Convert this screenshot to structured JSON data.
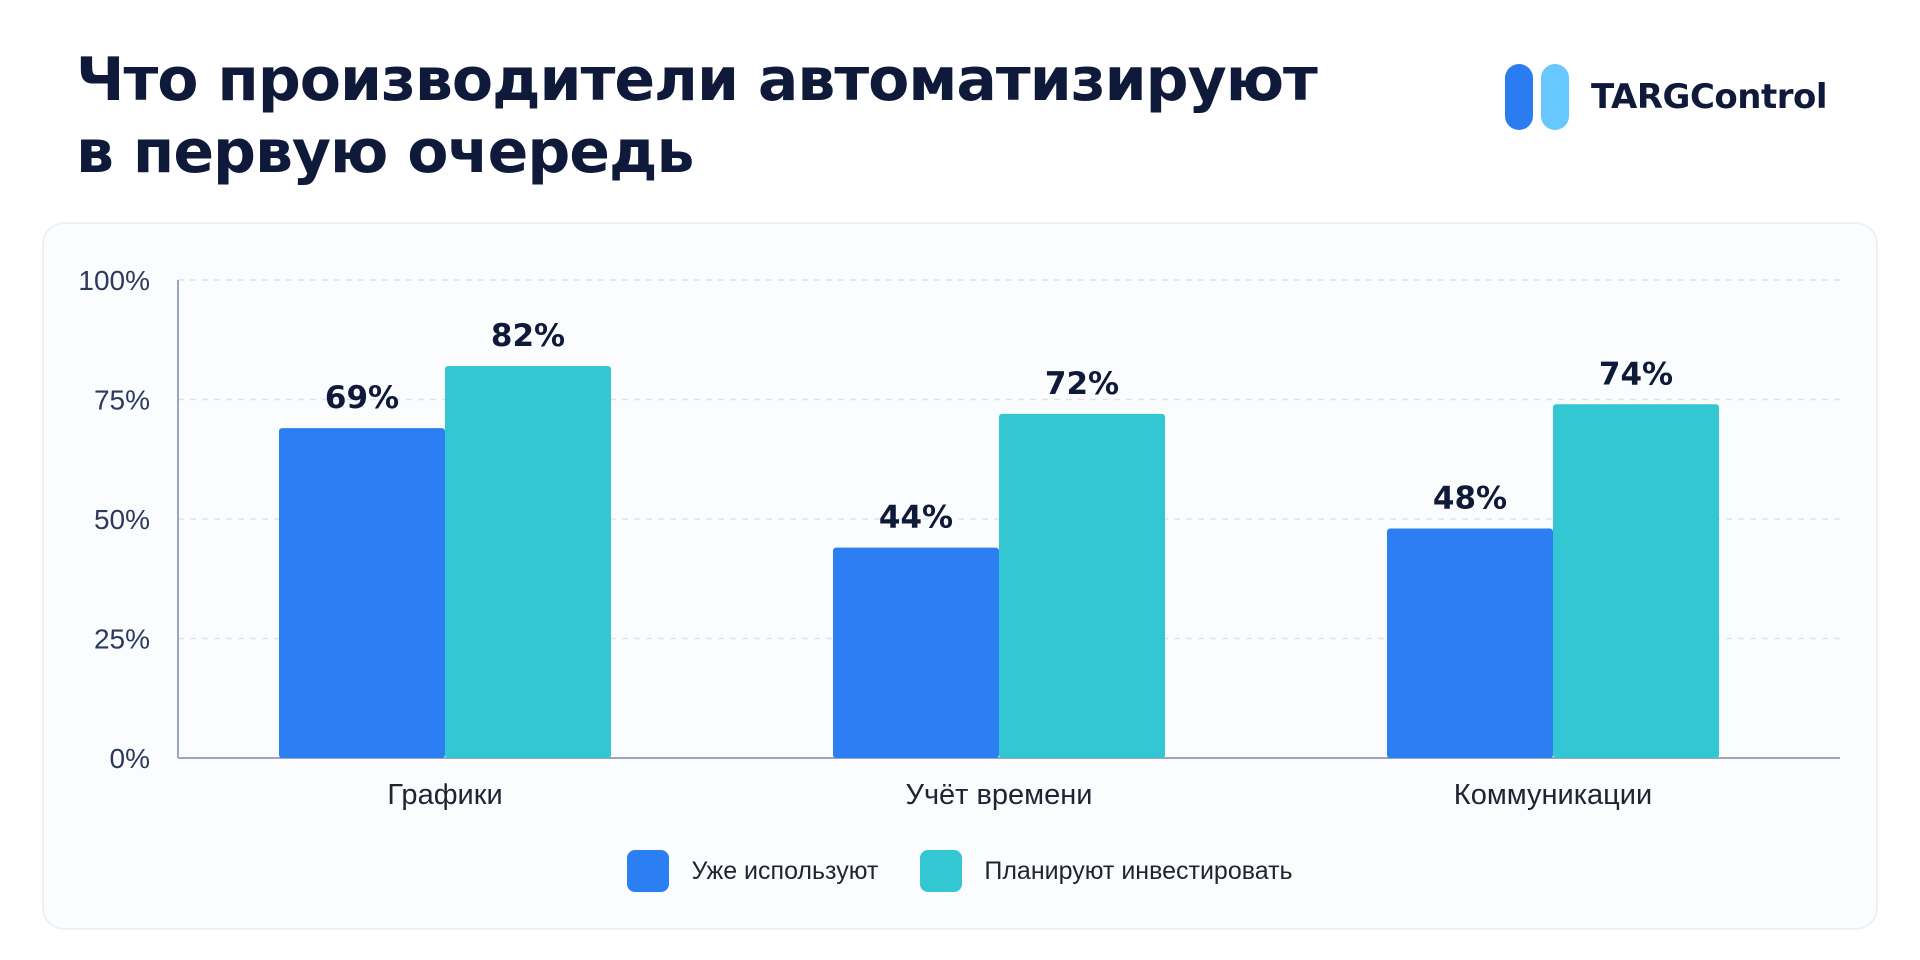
{
  "title_lines": [
    "Что производители автоматизируют",
    "в первую очередь"
  ],
  "brand": {
    "name": "TARGControl",
    "icon": "two-pill-logo-icon",
    "colors": [
      "#2b7cf0",
      "#67c7ff"
    ]
  },
  "chart_data": {
    "type": "bar",
    "categories": [
      "Графики",
      "Учёт времени",
      "Коммуникации"
    ],
    "series": [
      {
        "name": "Уже используют",
        "values": [
          69,
          44,
          48
        ],
        "labels": [
          "69%",
          "44%",
          "48%"
        ],
        "color": "#2b7ff2"
      },
      {
        "name": "Планируют инвестировать",
        "values": [
          82,
          72,
          74
        ],
        "labels": [
          "82%",
          "72%",
          "74%"
        ],
        "color": "#33c6d3"
      }
    ],
    "ylim": [
      0,
      100
    ],
    "yticks": [
      0,
      25,
      50,
      75,
      100
    ],
    "ytick_labels": [
      "0%",
      "25%",
      "50%",
      "75%",
      "100%"
    ],
    "grid": true,
    "legend_position": "bottom-center"
  }
}
